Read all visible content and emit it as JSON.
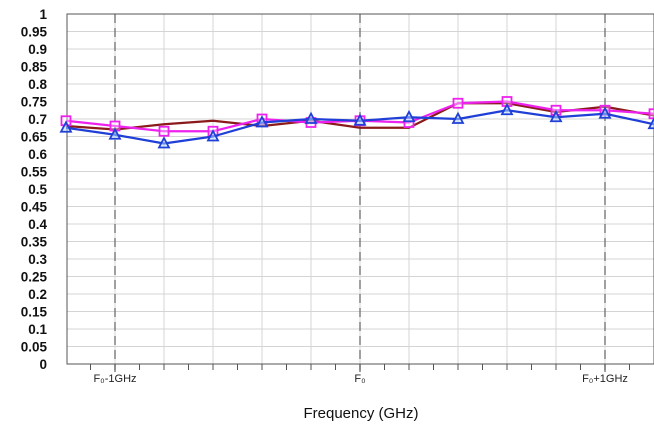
{
  "chart_data": {
    "type": "line",
    "xlabel": "Frequency (GHz)",
    "ylabel": "",
    "title": "",
    "ylim": [
      0,
      1
    ],
    "yticks": [
      "0",
      "0.05",
      "0.1",
      "0.15",
      "0.2",
      "0.25",
      "0.3",
      "0.35",
      "0.4",
      "0.45",
      "0.5",
      "0.55",
      "0.6",
      "0.65",
      "0.7",
      "0.75",
      "0.8",
      "0.85",
      "0.9",
      "0.95",
      "1"
    ],
    "xtick_labels": [
      {
        "label": "F₀-1GHz",
        "x": 1
      },
      {
        "label": "F₀",
        "x": 6
      },
      {
        "label": "F₀+1GHz",
        "x": 11
      }
    ],
    "dashed_markers_x": [
      1,
      6,
      11
    ],
    "x": [
      0,
      1,
      2,
      3,
      4,
      5,
      6,
      7,
      8,
      9,
      10,
      11,
      12
    ],
    "series": [
      {
        "color": "#8b1a1a",
        "marker": "none",
        "values": [
          0.68,
          0.67,
          0.685,
          0.695,
          0.68,
          0.695,
          0.675,
          0.675,
          0.745,
          0.745,
          0.72,
          0.735,
          0.71
        ]
      },
      {
        "color": "#ee22ee",
        "marker": "square",
        "values": [
          0.695,
          0.68,
          0.665,
          0.665,
          0.7,
          0.69,
          0.695,
          0.69,
          0.745,
          0.75,
          0.725,
          0.725,
          0.715
        ]
      },
      {
        "color": "#1f3fd6",
        "marker": "triangle",
        "values": [
          0.675,
          0.655,
          0.63,
          0.65,
          0.69,
          0.7,
          0.695,
          0.705,
          0.7,
          0.725,
          0.705,
          0.715,
          0.685
        ]
      }
    ],
    "grid": true
  }
}
